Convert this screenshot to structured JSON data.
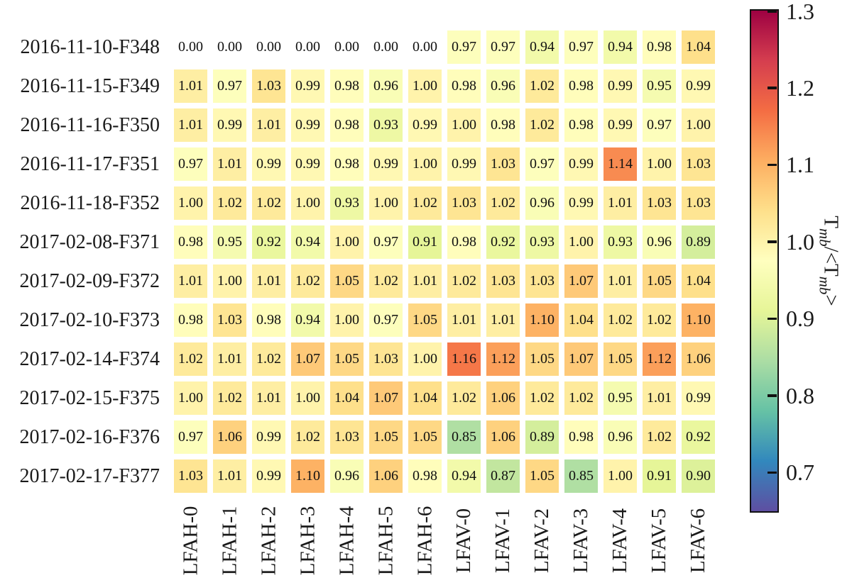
{
  "figure": {
    "background": "#ffffff",
    "text_color": "#1a1a1a"
  },
  "chart_data": {
    "type": "heatmap",
    "rows": [
      "2016-11-10-F348",
      "2016-11-15-F349",
      "2016-11-16-F350",
      "2016-11-17-F351",
      "2016-11-18-F352",
      "2017-02-08-F371",
      "2017-02-09-F372",
      "2017-02-10-F373",
      "2017-02-14-F374",
      "2017-02-15-F375",
      "2017-02-16-F376",
      "2017-02-17-F377"
    ],
    "columns": [
      "LFAH-0",
      "LFAH-1",
      "LFAH-2",
      "LFAH-3",
      "LFAH-4",
      "LFAH-5",
      "LFAH-6",
      "LFAV-0",
      "LFAV-1",
      "LFAV-2",
      "LFAV-3",
      "LFAV-4",
      "LFAV-5",
      "LFAV-6"
    ],
    "values": [
      [
        0.0,
        0.0,
        0.0,
        0.0,
        0.0,
        0.0,
        0.0,
        0.97,
        0.97,
        0.94,
        0.97,
        0.94,
        0.98,
        1.04
      ],
      [
        1.01,
        0.97,
        1.03,
        0.99,
        0.98,
        0.96,
        1.0,
        0.98,
        0.96,
        1.02,
        0.98,
        0.99,
        0.95,
        0.99
      ],
      [
        1.01,
        0.99,
        1.01,
        0.99,
        0.98,
        0.93,
        0.99,
        1.0,
        0.98,
        1.02,
        0.98,
        0.99,
        0.97,
        1.0
      ],
      [
        0.97,
        1.01,
        0.99,
        0.99,
        0.98,
        0.99,
        1.0,
        0.99,
        1.03,
        0.97,
        0.99,
        1.14,
        1.0,
        1.03
      ],
      [
        1.0,
        1.02,
        1.02,
        1.0,
        0.93,
        1.0,
        1.02,
        1.03,
        1.02,
        0.96,
        0.99,
        1.01,
        1.03,
        1.03
      ],
      [
        0.98,
        0.95,
        0.92,
        0.94,
        1.0,
        0.97,
        0.91,
        0.98,
        0.92,
        0.93,
        1.0,
        0.93,
        0.96,
        0.89
      ],
      [
        1.01,
        1.0,
        1.01,
        1.02,
        1.05,
        1.02,
        1.01,
        1.02,
        1.03,
        1.03,
        1.07,
        1.01,
        1.05,
        1.04
      ],
      [
        0.98,
        1.03,
        0.98,
        0.94,
        1.0,
        0.97,
        1.05,
        1.01,
        1.01,
        1.1,
        1.04,
        1.02,
        1.02,
        1.1
      ],
      [
        1.02,
        1.01,
        1.02,
        1.07,
        1.05,
        1.03,
        1.0,
        1.16,
        1.12,
        1.05,
        1.07,
        1.05,
        1.12,
        1.06
      ],
      [
        1.0,
        1.02,
        1.01,
        1.0,
        1.04,
        1.07,
        1.04,
        1.02,
        1.06,
        1.02,
        1.02,
        0.95,
        1.01,
        0.99
      ],
      [
        0.97,
        1.06,
        0.99,
        1.02,
        1.03,
        1.05,
        1.05,
        0.85,
        1.06,
        0.89,
        0.98,
        0.96,
        1.02,
        0.92
      ],
      [
        1.03,
        1.01,
        0.99,
        1.1,
        0.96,
        1.06,
        0.98,
        0.94,
        0.87,
        1.05,
        0.85,
        1.0,
        0.91,
        0.9
      ]
    ],
    "value_decimals": 2,
    "masked_value": 0.0,
    "annotations_on": true,
    "grid_gaps": true,
    "colorbar": {
      "label_parts": [
        {
          "t": "T"
        },
        {
          "t": "mb",
          "sub": true
        },
        {
          "t": "/<T"
        },
        {
          "t": "mb",
          "sub": true
        },
        {
          "t": ">"
        }
      ],
      "ticks": [
        1.3,
        1.2,
        1.1,
        1.0,
        0.9,
        0.8,
        0.7
      ],
      "tick_decimals": 1,
      "vmin": 0.65,
      "vmax": 1.3,
      "colormap": "Spectral_r",
      "colormap_colors_low_to_high": [
        "#5e4fa2",
        "#3288bd",
        "#66c2a5",
        "#abdda4",
        "#e6f598",
        "#ffffbf",
        "#fee08b",
        "#fdae61",
        "#f46d43",
        "#d53e4f",
        "#9e0142"
      ],
      "position": "right"
    }
  }
}
